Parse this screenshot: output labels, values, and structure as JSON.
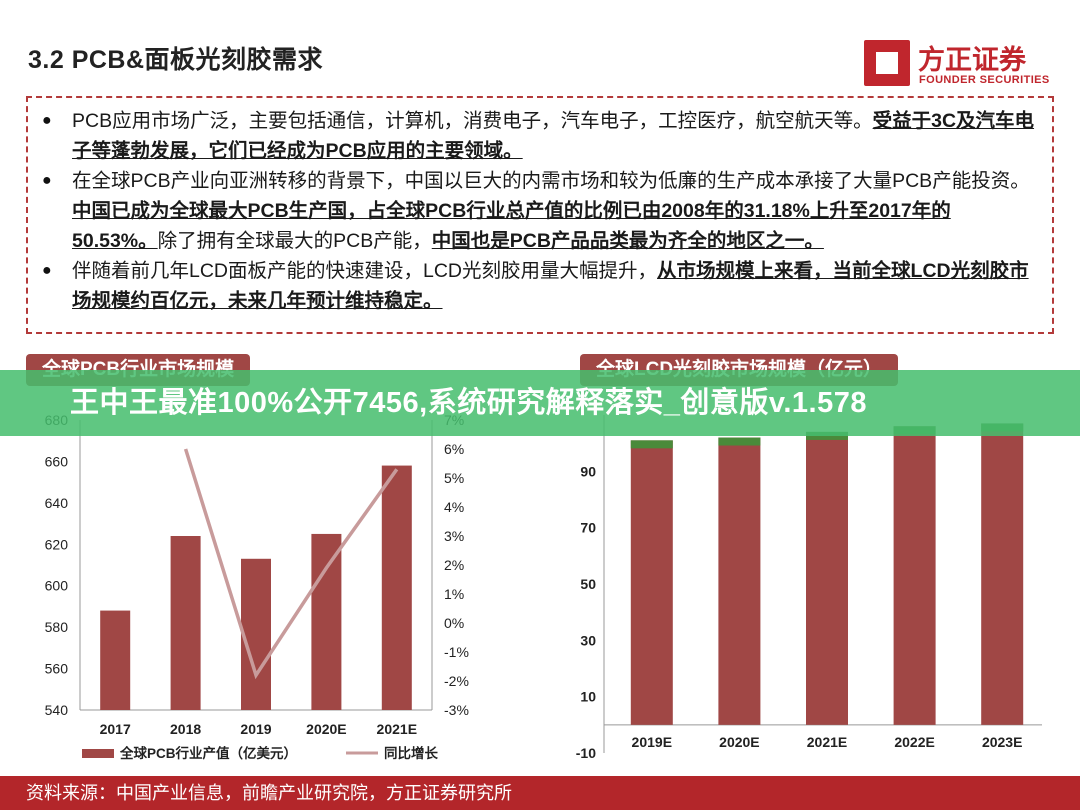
{
  "header": {
    "title": "3.2 PCB&面板光刻胶需求",
    "logo_name": "方正证券",
    "logo_sub": "FOUNDER SECURITIES"
  },
  "summary": {
    "b1_plain": "PCB应用市场广泛，主要包括通信，计算机，消费电子，汽车电子，工控医疗，航空航天等。",
    "b1_bold": "受益于3C及汽车电子等蓬勃发展，它们已经成为PCB应用的主要领域。",
    "b2_plain1": "在全球PCB产业向亚洲转移的背景下，中国以巨大的内需市场和较为低廉的生产成本承接了大量PCB产能投资。",
    "b2_bold1": "中国已成为全球最大PCB生产国，占全球PCB行业总产值的比例已由2008年的31.18%上升至2017年的50.53%。",
    "b2_plain2": "除了拥有全球最大的PCB产能，",
    "b2_bold2": "中国也是PCB产品品类最为齐全的地区之一。",
    "b3_plain": "伴随着前几年LCD面板产能的快速建设，LCD光刻胶用量大幅提升，",
    "b3_bold": "从市场规模上来看，当前全球LCD光刻胶市场规模约百亿元，未来几年预计维持稳定。"
  },
  "banner_text": "王中王最准100%公开7456,系统研究解释落实_创意版v.1.578",
  "footer_text": "资料来源：中国产业信息，前瞻产业研究院，方正证券研究所",
  "colors": {
    "bar": "#a04745",
    "bar_top": "#4a8a3a",
    "line": "#c89b9b",
    "brand": "#c0262d"
  },
  "chart_data": [
    {
      "type": "bar",
      "title": "全球PCB行业市场规模",
      "categories": [
        "2017",
        "2018",
        "2019",
        "2020E",
        "2021E"
      ],
      "series": [
        {
          "name": "全球PCB行业产值（亿美元）",
          "type": "bar",
          "axis": "left",
          "values": [
            588,
            624,
            613,
            625,
            658
          ]
        },
        {
          "name": "同比增长",
          "type": "line",
          "axis": "right",
          "values": [
            null,
            6.0,
            -1.8,
            1.9,
            5.3
          ]
        }
      ],
      "y_left": {
        "min": 540,
        "max": 680,
        "ticks": [
          "540",
          "560",
          "580",
          "600",
          "620",
          "640",
          "660",
          "680"
        ]
      },
      "y_right": {
        "min": -3,
        "max": 7,
        "ticks": [
          "-3%",
          "-2%",
          "-1%",
          "0%",
          "1%",
          "2%",
          "3%",
          "4%",
          "5%",
          "6%",
          "7%"
        ]
      },
      "legend_position": "bottom",
      "grid": false
    },
    {
      "type": "bar",
      "title": "全球LCD光刻胶市场规模（亿元）",
      "categories": [
        "2019E",
        "2020E",
        "2021E",
        "2022E",
        "2023E"
      ],
      "values": [
        101,
        102,
        104,
        106,
        107
      ],
      "ylim": [
        -10,
        110
      ],
      "y_ticks": [
        "-10",
        "10",
        "30",
        "50",
        "70",
        "90"
      ],
      "grid": false
    }
  ]
}
